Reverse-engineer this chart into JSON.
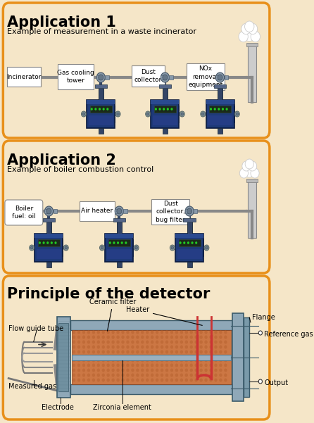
{
  "bg_color": "#f5e6c8",
  "border_color": "#e8901a",
  "app1_title": "Application 1",
  "app1_sub": "Example of measurement in a waste incinerator",
  "app2_title": "Application 2",
  "app2_sub": "Example of boiler combustion control",
  "app3_title": "Principle of the detector",
  "app1_labels": [
    "Incinerator",
    "Gas cooling\ntower",
    "Dust\ncollector",
    "NOx\nremoval\nequipment"
  ],
  "app2_labels": [
    "Boiler\nfuel: oil",
    "Air heater",
    "Dust\ncollector,\nbug filter"
  ],
  "detector_labels": {
    "ceramic_filter": "Ceramic filter",
    "heater": "Heater",
    "flange": "Flange",
    "ref_gas": "Reference gas",
    "output": "Output",
    "flow_guide": "Flow guide tube",
    "measured_gas": "Measured gas",
    "electrode": "Electrode",
    "zirconia": "Zirconia element"
  },
  "fig_width": 4.46,
  "fig_height": 6.01,
  "dpi": 100
}
